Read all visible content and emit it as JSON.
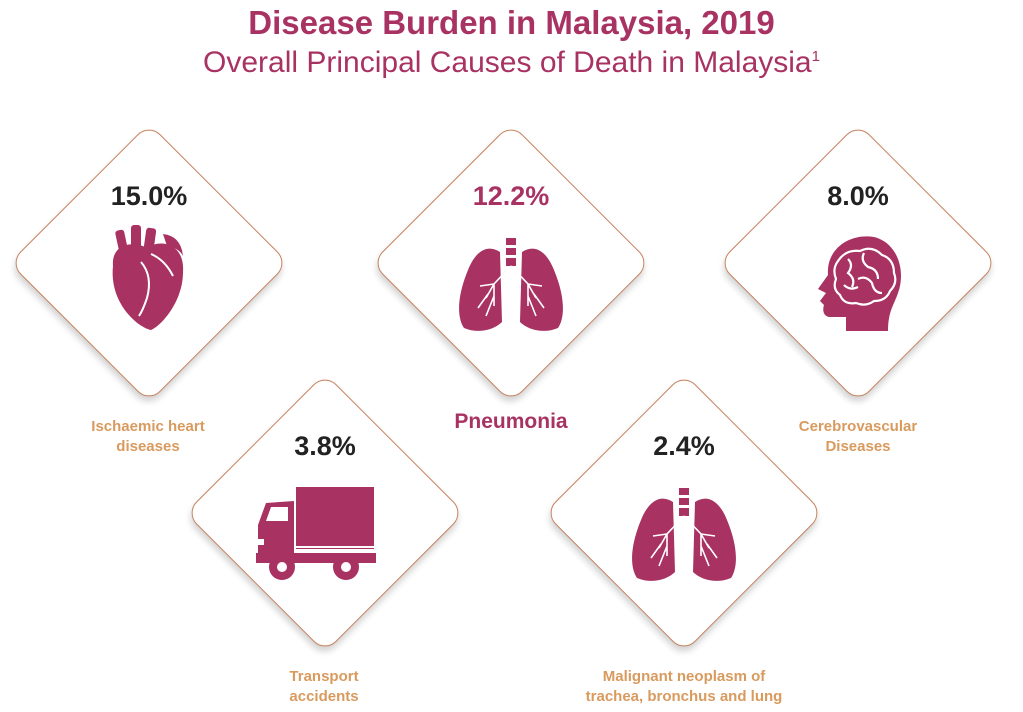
{
  "header": {
    "title": "Disease Burden in Malaysia, 2019",
    "subtitle": "Overall Principal Causes of Death in Malaysia",
    "footnote_marker": "1"
  },
  "causes": [
    {
      "percent": "15.0%",
      "label_line1": "Ischaemic heart",
      "label_line2": "diseases",
      "icon": "heart-icon"
    },
    {
      "percent": "12.2%",
      "label_line1": "Pneumonia",
      "label_line2": "",
      "icon": "lungs-icon"
    },
    {
      "percent": "8.0%",
      "label_line1": "Cerebrovascular",
      "label_line2": "Diseases",
      "icon": "brain-head-icon"
    },
    {
      "percent": "3.8%",
      "label_line1": "Transport",
      "label_line2": "accidents",
      "icon": "truck-icon"
    },
    {
      "percent": "2.4%",
      "label_line1": "Malignant neoplasm of",
      "label_line2": "trachea, bronchus and lung",
      "icon": "lungs-icon"
    }
  ],
  "colors": {
    "primary": "#a83262",
    "label": "#d99a5e",
    "border": "#c7835f",
    "percent_text": "#222222"
  }
}
